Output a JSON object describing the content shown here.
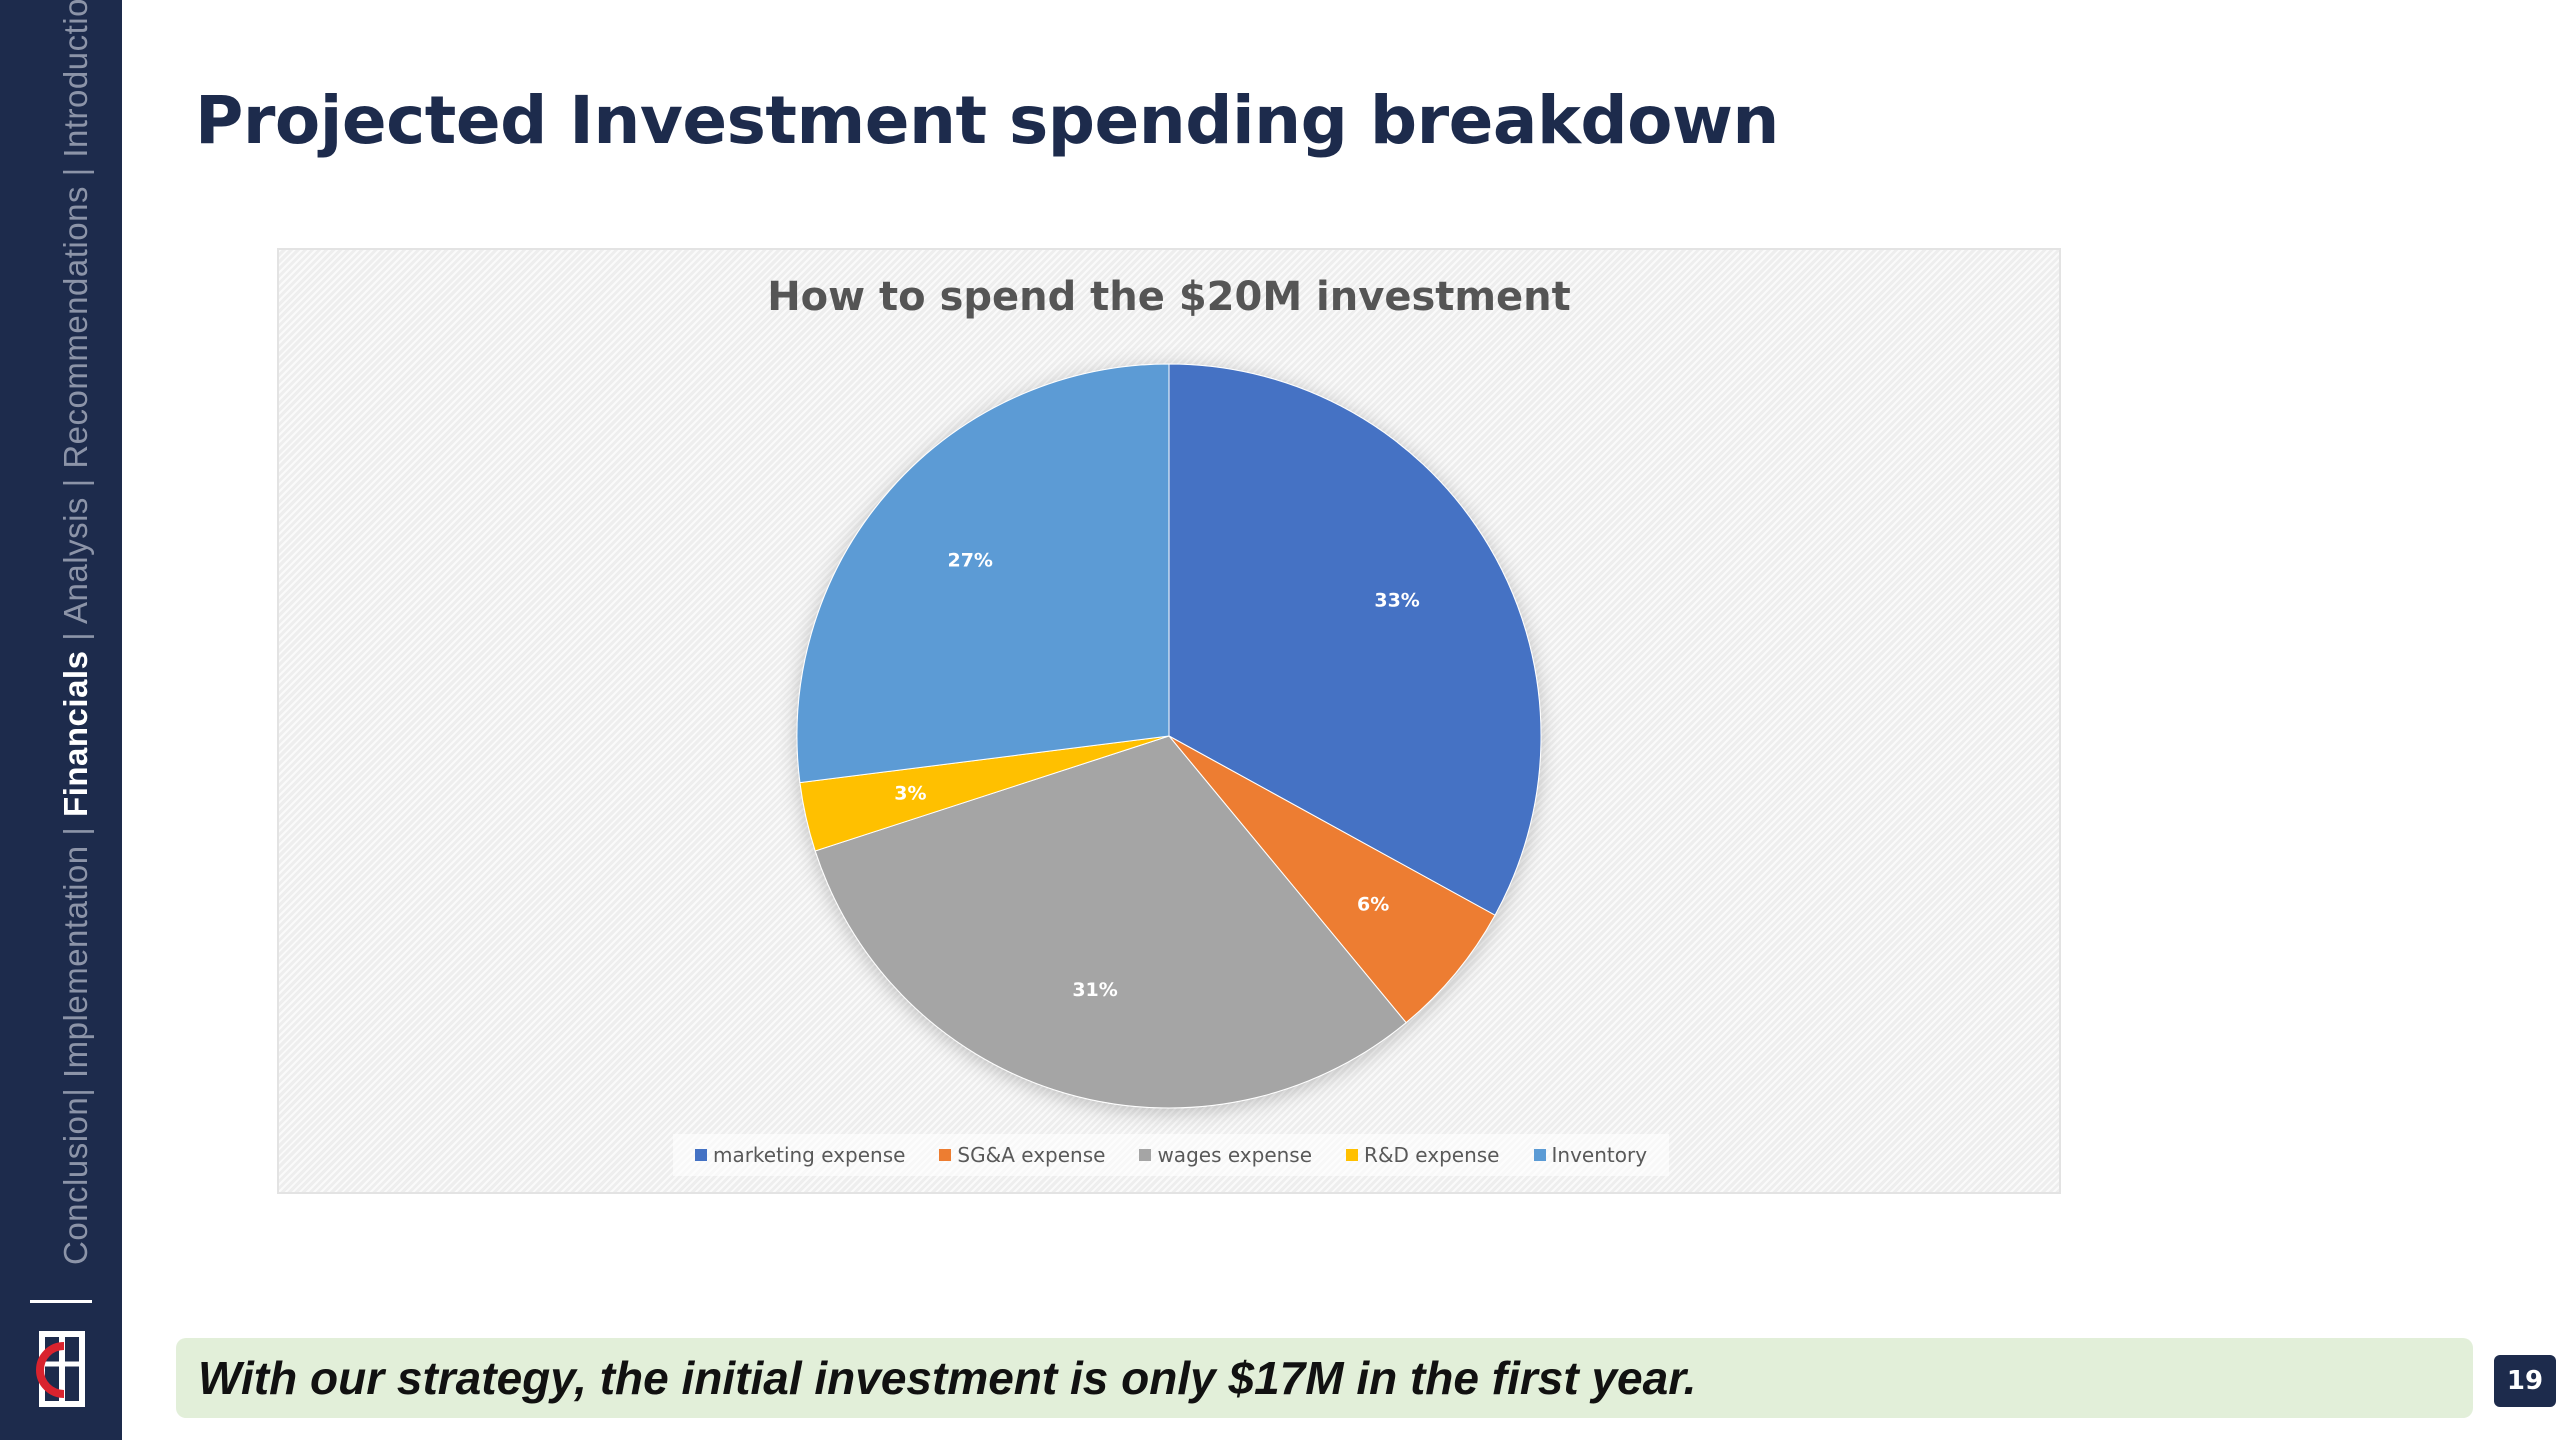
{
  "slide": {
    "title": "Projected Investment spending breakdown",
    "banner_text": "With our strategy, the initial investment is only $17M in the first year.",
    "page_number": "19"
  },
  "sidebar": {
    "nav_items": [
      {
        "label": "Conclusion|",
        "active": false
      },
      {
        "label": " Implementation | ",
        "active": false
      },
      {
        "label": "Financials",
        "active": true
      },
      {
        "label": " | Analysis | Recommendations | Introduction",
        "active": false
      }
    ],
    "logo": "company-logo"
  },
  "colors": {
    "sidebar": "#1d2b4c",
    "banner": "#e2efd9",
    "marketing": "#4472c4",
    "sga": "#ed7d31",
    "wages": "#a5a5a5",
    "rnd": "#ffc000",
    "inventory": "#5b9bd5"
  },
  "chart_data": {
    "type": "pie",
    "title": "How to spend the $20M investment",
    "categories": [
      "marketing expense",
      "SG&A expense",
      "wages expense",
      "R&D expense",
      "Inventory"
    ],
    "values": [
      33,
      6,
      31,
      3,
      27
    ],
    "labels": [
      "33%",
      "6%",
      "31%",
      "3%",
      "27%"
    ],
    "colors": [
      "#4472c4",
      "#ed7d31",
      "#a5a5a5",
      "#ffc000",
      "#5b9bd5"
    ],
    "start_angle": "12 o'clock",
    "direction": "clockwise",
    "legend": "bottom"
  }
}
